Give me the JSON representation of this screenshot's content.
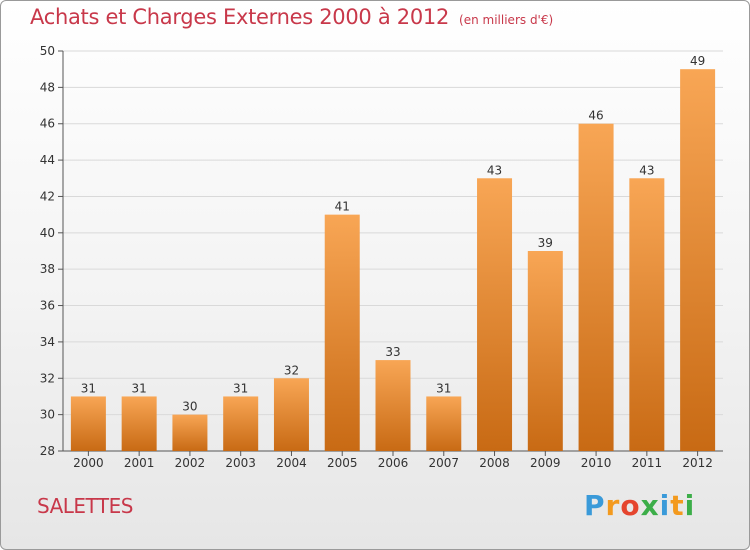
{
  "title": "Achats et Charges Externes 2000 à 2012",
  "subtitle": "(en milliers d'€)",
  "commune": "SALETTES",
  "brand": {
    "text": "Proxiti",
    "letters": [
      "P",
      "r",
      "o",
      "x",
      "i",
      "t",
      "i"
    ],
    "letter_colors": [
      "#3a9ad9",
      "#f39a1e",
      "#e5452e",
      "#3cae49",
      "#3a9ad9",
      "#f39a1e",
      "#3cae49"
    ]
  },
  "colors": {
    "title": "#c8384a",
    "bar_light": "#f8a655",
    "bar_dark": "#c86a14",
    "axis": "#555555",
    "grid": "#d9d9d9"
  },
  "chart_data": {
    "type": "bar",
    "categories": [
      "2000",
      "2001",
      "2002",
      "2003",
      "2004",
      "2005",
      "2006",
      "2007",
      "2008",
      "2009",
      "2010",
      "2011",
      "2012"
    ],
    "values": [
      31,
      31,
      30,
      31,
      32,
      41,
      33,
      31,
      43,
      39,
      46,
      43,
      49
    ],
    "ylim": [
      28,
      50
    ],
    "yticks": [
      28,
      30,
      32,
      34,
      36,
      38,
      40,
      42,
      44,
      46,
      48,
      50
    ],
    "grid": true,
    "data_labels": true
  }
}
